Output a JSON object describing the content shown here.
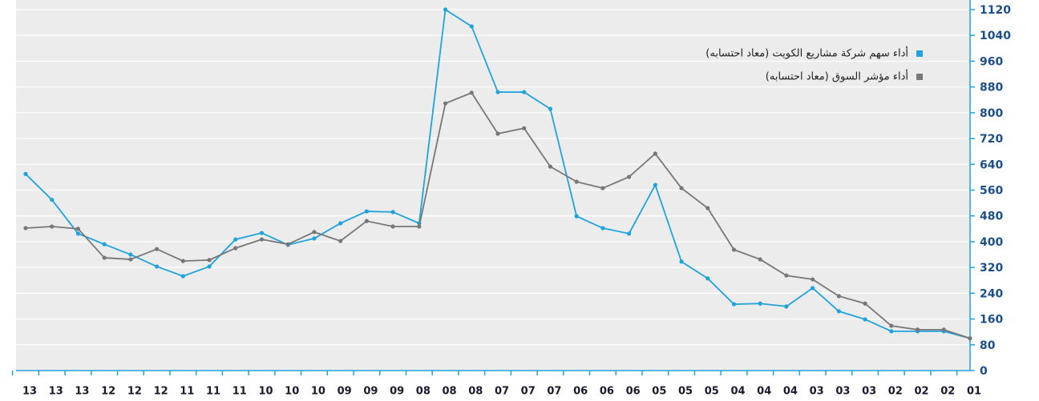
{
  "chart_data": {
    "type": "line",
    "categories": [
      "13",
      "13",
      "13",
      "12",
      "12",
      "12",
      "11",
      "11",
      "11",
      "10",
      "10",
      "10",
      "09",
      "09",
      "09",
      "08",
      "08",
      "08",
      "07",
      "07",
      "07",
      "06",
      "06",
      "06",
      "05",
      "05",
      "05",
      "04",
      "04",
      "04",
      "03",
      "03",
      "03",
      "02",
      "02",
      "02",
      "01"
    ],
    "series": [
      {
        "name": "أداء سهم شركة مشاريع الكويت (معاد احتسابه)",
        "color": "#1fa3dc",
        "values": [
          610,
          530,
          425,
          392,
          360,
          323,
          293,
          323,
          407,
          427,
          390,
          410,
          457,
          494,
          492,
          457,
          1120,
          1068,
          864,
          864,
          812,
          479,
          442,
          425,
          576,
          338,
          286,
          206,
          208,
          199,
          256,
          184,
          159,
          122,
          122,
          122,
          100
        ]
      },
      {
        "name": "أداء مؤشر السوق (معاد احتسابه)",
        "color": "#777777",
        "values": [
          442,
          447,
          440,
          350,
          345,
          377,
          340,
          343,
          380,
          407,
          392,
          430,
          402,
          464,
          447,
          447,
          829,
          862,
          735,
          752,
          633,
          586,
          566,
          601,
          673,
          566,
          504,
          375,
          345,
          295,
          283,
          231,
          208,
          139,
          127,
          127,
          100
        ]
      }
    ],
    "ylim": [
      0,
      1120
    ],
    "yticks": [
      0,
      80,
      160,
      240,
      320,
      400,
      480,
      560,
      640,
      720,
      800,
      880,
      960,
      1040,
      1120
    ],
    "grid": true,
    "legend": "top right"
  }
}
